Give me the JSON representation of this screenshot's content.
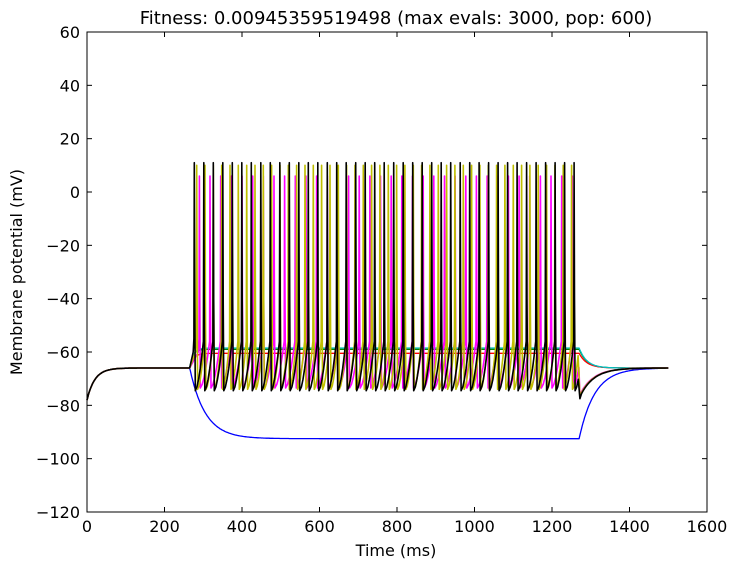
{
  "chart_data": {
    "type": "line",
    "title": "Fitness: 0.00945359519498 (max evals: 3000, pop: 600)",
    "xlabel": "Time (ms)",
    "ylabel": "Membrane potential (mV)",
    "xlim": [
      0,
      1600
    ],
    "ylim": [
      -120,
      60
    ],
    "xticks": [
      0,
      200,
      400,
      600,
      800,
      1000,
      1200,
      1400,
      1600
    ],
    "yticks": [
      -120,
      -100,
      -80,
      -60,
      -40,
      -20,
      0,
      20,
      40,
      60
    ],
    "xtick_labels": [
      "0",
      "200",
      "400",
      "600",
      "800",
      "1000",
      "1200",
      "1400",
      "1600"
    ],
    "ytick_labels": [
      "−120",
      "−100",
      "−80",
      "−60",
      "−40",
      "−20",
      "0",
      "20",
      "40",
      "60"
    ],
    "grid": false,
    "legend": "none",
    "stimulus": {
      "onset_ms": 265,
      "offset_ms": 1270,
      "duration_ms": 1500,
      "rest_mv": -66
    },
    "series": [
      {
        "color": "#0000ff",
        "kind": "hyperpolarized",
        "steady_mv": -92.5,
        "tau_ms": 40
      },
      {
        "color": "#008000",
        "kind": "depolarized",
        "steady_mv": -59,
        "tau_ms": 8
      },
      {
        "color": "#ff0000",
        "kind": "depolarized",
        "steady_mv": -60.5,
        "tau_ms": 10
      },
      {
        "color": "#00bfbf",
        "kind": "depolarized",
        "steady_mv": -58.5,
        "tau_ms": 9
      },
      {
        "color": "#ff00ff",
        "kind": "spiking",
        "first_spike_ms": 290,
        "isi_ms": 27.5,
        "peak_mv": 6,
        "trough_mv": -73.5
      },
      {
        "color": "#bfbf00",
        "kind": "spiking",
        "first_spike_ms": 283,
        "isi_ms": 21.5,
        "peak_mv": 10,
        "trough_mv": -74
      },
      {
        "color": "#000000",
        "kind": "spiking",
        "first_spike_ms": 277,
        "isi_ms": 24.5,
        "peak_mv": 11,
        "trough_mv": -74.5
      }
    ]
  }
}
